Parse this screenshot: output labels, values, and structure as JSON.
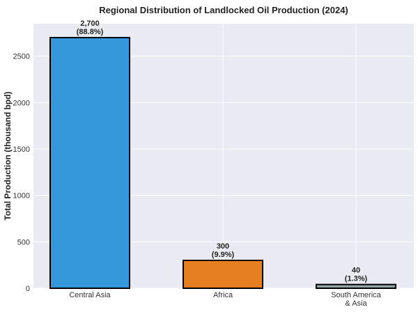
{
  "chart_data": {
    "type": "bar",
    "title": "Regional Distribution of Landlocked Oil Production (2024)",
    "xlabel": "",
    "ylabel": "Total Production (thousand bpd)",
    "categories": [
      "Central Asia",
      "Africa",
      "South America\n& Asia"
    ],
    "values": [
      2700,
      300,
      40
    ],
    "value_labels": [
      "2,700",
      "300",
      "40"
    ],
    "percent_labels": [
      "(88.8%)",
      "(9.9%)",
      "(1.3%)"
    ],
    "colors": [
      "#3498db",
      "#e67e22",
      "#95a5a6"
    ],
    "ylim": [
      0,
      2850
    ],
    "yticks": [
      0,
      500,
      1000,
      1500,
      2000,
      2500
    ],
    "grid": true,
    "background": "#eaeaf2"
  }
}
